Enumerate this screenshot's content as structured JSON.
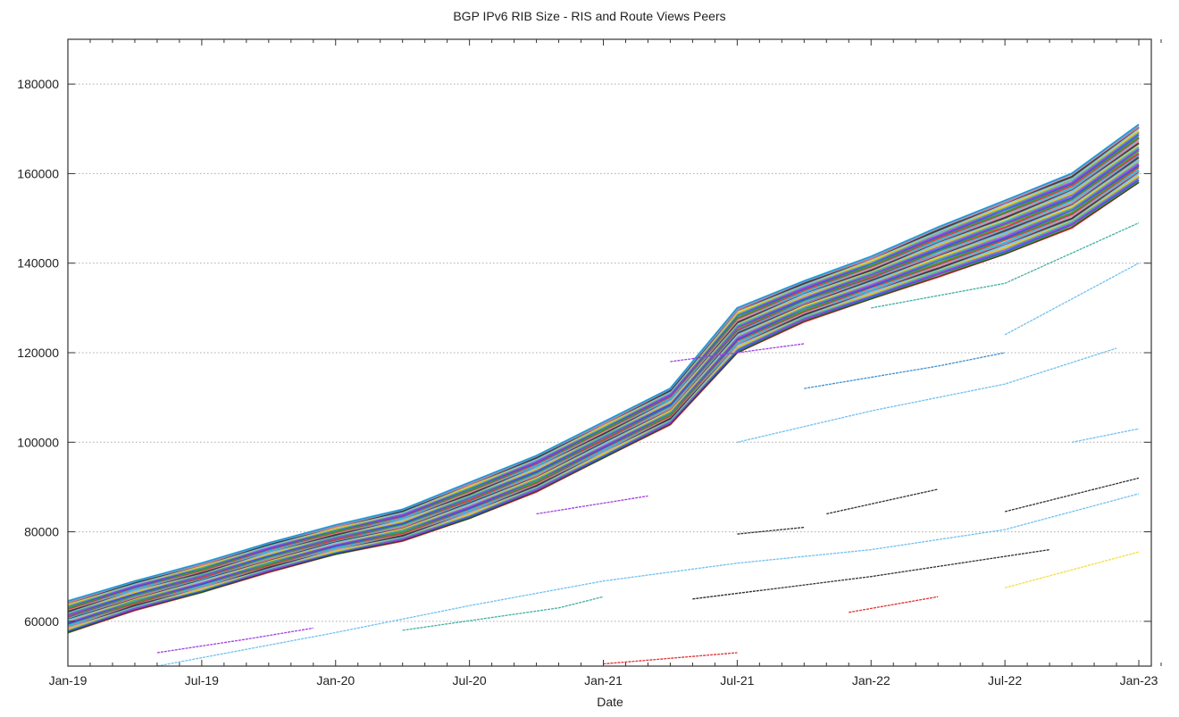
{
  "chart_data": {
    "type": "line",
    "title": "BGP IPv6 RIB Size - RIS and Route Views Peers",
    "xlabel": "Date",
    "ylabel": "",
    "xlim": [
      "2019-01",
      "2023-02"
    ],
    "ylim": [
      50000,
      190000
    ],
    "grid": {
      "y": true,
      "x": false,
      "style": "dotted"
    },
    "legend": "none",
    "xticks": [
      {
        "date": "2019-01",
        "label": "Jan-19"
      },
      {
        "date": "2019-07",
        "label": "Jul-19"
      },
      {
        "date": "2020-01",
        "label": "Jan-20"
      },
      {
        "date": "2020-07",
        "label": "Jul-20"
      },
      {
        "date": "2021-01",
        "label": "Jan-21"
      },
      {
        "date": "2021-07",
        "label": "Jul-21"
      },
      {
        "date": "2022-01",
        "label": "Jan-22"
      },
      {
        "date": "2022-07",
        "label": "Jul-22"
      },
      {
        "date": "2023-01",
        "label": "Jan-23"
      }
    ],
    "yticks": [
      60000,
      80000,
      100000,
      120000,
      140000,
      160000,
      180000
    ],
    "x": [
      "2019-01",
      "2019-04",
      "2019-07",
      "2019-10",
      "2020-01",
      "2020-04",
      "2020-07",
      "2020-10",
      "2021-01",
      "2021-04",
      "2021-07",
      "2021-10",
      "2022-01",
      "2022-04",
      "2022-07",
      "2022-10",
      "2023-01"
    ],
    "band": {
      "upper": [
        64500,
        69000,
        73000,
        77500,
        81500,
        85000,
        91000,
        97000,
        104500,
        112000,
        130000,
        136000,
        141500,
        148000,
        154000,
        160000,
        171000
      ],
      "median": [
        61000,
        65500,
        70000,
        74500,
        78500,
        82000,
        87500,
        93500,
        101000,
        108000,
        125000,
        131000,
        137000,
        142000,
        147000,
        153000,
        164000
      ],
      "lower": [
        57500,
        62500,
        66500,
        71000,
        75000,
        78000,
        83000,
        89000,
        96500,
        104000,
        120000,
        127000,
        132000,
        137000,
        142000,
        148000,
        158000
      ]
    },
    "series": [
      {
        "color": "#a040e0",
        "points": [
          [
            "2019-05",
            53000
          ],
          [
            "2019-09",
            56000
          ],
          [
            "2019-12",
            58500
          ]
        ]
      },
      {
        "color": "#70c0f0",
        "points": [
          [
            "2019-05",
            50000
          ],
          [
            "2020-01",
            57500
          ],
          [
            "2020-07",
            63500
          ],
          [
            "2021-01",
            69000
          ],
          [
            "2021-07",
            73000
          ],
          [
            "2022-01",
            76000
          ],
          [
            "2022-07",
            80500
          ],
          [
            "2023-01",
            88500
          ]
        ]
      },
      {
        "color": "#303030",
        "points": [
          [
            "2021-07",
            79500
          ],
          [
            "2021-10",
            81000
          ]
        ]
      },
      {
        "color": "#303030",
        "points": [
          [
            "2021-11",
            84000
          ],
          [
            "2022-04",
            89500
          ]
        ]
      },
      {
        "color": "#303030",
        "points": [
          [
            "2022-07",
            84500
          ],
          [
            "2023-01",
            92000
          ]
        ]
      },
      {
        "color": "#303030",
        "points": [
          [
            "2021-05",
            65000
          ],
          [
            "2022-01",
            70000
          ],
          [
            "2022-09",
            76000
          ]
        ]
      },
      {
        "color": "#f0e040",
        "points": [
          [
            "2022-07",
            67500
          ],
          [
            "2023-01",
            75500
          ]
        ]
      },
      {
        "color": "#40b0a0",
        "points": [
          [
            "2020-04",
            58000
          ],
          [
            "2020-11",
            63000
          ],
          [
            "2021-01",
            65500
          ]
        ]
      },
      {
        "color": "#4090d0",
        "points": [
          [
            "2021-10",
            112000
          ],
          [
            "2022-04",
            117000
          ],
          [
            "2022-07",
            120000
          ]
        ]
      },
      {
        "color": "#70c0f0",
        "points": [
          [
            "2021-07",
            100000
          ],
          [
            "2022-01",
            107000
          ],
          [
            "2022-07",
            113000
          ],
          [
            "2022-12",
            121000
          ]
        ]
      },
      {
        "color": "#70c0f0",
        "points": [
          [
            "2022-07",
            124000
          ],
          [
            "2023-01",
            140000
          ]
        ]
      },
      {
        "color": "#40b0a0",
        "points": [
          [
            "2022-01",
            130000
          ],
          [
            "2022-07",
            135500
          ],
          [
            "2023-01",
            149000
          ]
        ]
      },
      {
        "color": "#a040e0",
        "points": [
          [
            "2021-04",
            118000
          ],
          [
            "2021-10",
            122000
          ]
        ]
      },
      {
        "color": "#e03030",
        "points": [
          [
            "2021-01",
            50500
          ],
          [
            "2021-07",
            53000
          ]
        ]
      },
      {
        "color": "#e03030",
        "points": [
          [
            "2021-12",
            62000
          ],
          [
            "2022-04",
            65500
          ]
        ]
      },
      {
        "color": "#70c0f0",
        "points": [
          [
            "2022-10",
            100000
          ],
          [
            "2023-01",
            103000
          ]
        ]
      },
      {
        "color": "#a040e0",
        "points": [
          [
            "2020-10",
            84000
          ],
          [
            "2021-03",
            88000
          ]
        ]
      }
    ],
    "band_colors": [
      "#e03030",
      "#30a030",
      "#3050e0",
      "#a040e0",
      "#40b0a0",
      "#f0c020",
      "#70c0f0",
      "#303030",
      "#e080a0",
      "#20c0e0"
    ]
  }
}
